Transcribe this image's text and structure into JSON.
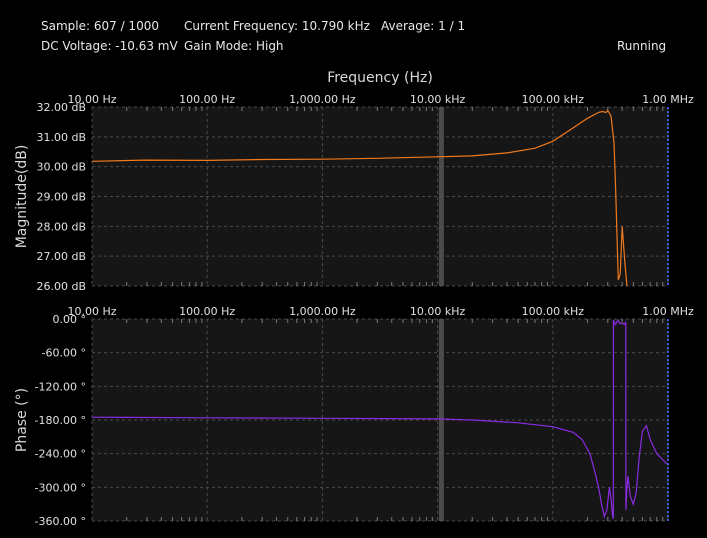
{
  "status": {
    "sample": "Sample: 607 / 1000",
    "current_frequency": "Current Frequency: 10.790 kHz",
    "average": "Average: 1 / 1",
    "dc_voltage": "DC Voltage: -10.63 mV",
    "gain_mode": "Gain Mode: High",
    "run_state": "Running"
  },
  "colors": {
    "background": "#000000",
    "plot_background": "#161616",
    "grid": "#4a4a4a",
    "magnitude_trace": "#f07a1e",
    "phase_trace": "#8a2be2",
    "cursor": "#555555",
    "right_edge_marker": "#3b5bd6"
  },
  "chart_data": [
    {
      "type": "line",
      "title": "Frequency (Hz)",
      "xlabel": "Frequency (Hz)",
      "ylabel": "Magnitude(dB)",
      "x_scale": "log",
      "x_ticks": [
        "10.00 Hz",
        "100.00 Hz",
        "1,000.00 Hz",
        "10.00 kHz",
        "100.00 kHz",
        "1.00 MHz"
      ],
      "y_ticks": [
        "32.00 dB",
        "31.00 dB",
        "30.00 dB",
        "29.00 dB",
        "28.00 dB",
        "27.00 dB",
        "26.00 dB"
      ],
      "xlim": [
        10,
        1000000
      ],
      "ylim": [
        26,
        32
      ],
      "grid": true,
      "cursor_x": 10790,
      "series": [
        {
          "color": "#f07a1e",
          "x": [
            10,
            30,
            100,
            300,
            1000,
            3000,
            10000,
            20000,
            40000,
            70000,
            100000,
            150000,
            200000,
            250000,
            270000,
            290000,
            300000,
            320000,
            340000,
            350000,
            360000,
            370000,
            385000,
            400000,
            420000,
            440000
          ],
          "y": [
            30.18,
            30.22,
            30.21,
            30.24,
            30.25,
            30.28,
            30.33,
            30.36,
            30.46,
            30.62,
            30.85,
            31.3,
            31.62,
            31.82,
            31.85,
            31.82,
            31.88,
            31.7,
            30.8,
            29.4,
            27.8,
            26.2,
            26.4,
            28.0,
            26.9,
            26.0
          ]
        }
      ]
    },
    {
      "type": "line",
      "ylabel": "Phase (°)",
      "x_scale": "log",
      "x_ticks": [
        "10.00 Hz",
        "100.00 Hz",
        "1,000.00 Hz",
        "10.00 kHz",
        "100.00 kHz",
        "1.00 MHz"
      ],
      "y_ticks": [
        "0.00 °",
        "-60.00 °",
        "-120.00 °",
        "-180.00 °",
        "-240.00 °",
        "-300.00 °",
        "-360.00 °"
      ],
      "xlim": [
        10,
        1000000
      ],
      "ylim": [
        -360,
        0
      ],
      "grid": true,
      "cursor_x": 10790,
      "series": [
        {
          "color": "#8a2be2",
          "x": [
            10,
            100,
            1000,
            10000,
            20000,
            50000,
            100000,
            150000,
            180000,
            210000,
            230000,
            250000,
            265000,
            280000,
            295000,
            310000,
            320000,
            330000,
            335000,
            336000,
            350000,
            360000,
            370000,
            380000,
            400000,
            420000,
            430000,
            431000,
            440000,
            450000,
            470000,
            500000,
            530000,
            560000,
            600000,
            650000,
            700000,
            800000,
            1000000
          ],
          "y": [
            -175,
            -176,
            -177,
            -178,
            -180,
            -185,
            -192,
            -202,
            -215,
            -240,
            -270,
            -300,
            -330,
            -352,
            -340,
            -300,
            -320,
            -350,
            -356,
            -2,
            -10,
            -5,
            -2,
            -8,
            -8,
            -10,
            -5,
            -340,
            -300,
            -280,
            -315,
            -330,
            -310,
            -250,
            -200,
            -190,
            -215,
            -240,
            -260
          ]
        }
      ]
    }
  ]
}
